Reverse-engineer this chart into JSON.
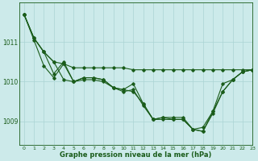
{
  "title": "Graphe pression niveau de la mer (hPa)",
  "bg_color": "#cceaea",
  "line_color": "#1a5c1a",
  "grid_color": "#aad4d4",
  "xlim": [
    -0.5,
    23
  ],
  "ylim": [
    1008.4,
    1012.0
  ],
  "yticks": [
    1009,
    1010,
    1011
  ],
  "xticks": [
    0,
    1,
    2,
    3,
    4,
    5,
    6,
    7,
    8,
    9,
    10,
    11,
    12,
    13,
    14,
    15,
    16,
    17,
    18,
    19,
    20,
    21,
    22,
    23
  ],
  "s1": [
    1011.7,
    1011.1,
    1010.75,
    1010.5,
    1010.45,
    1010.35,
    1010.35,
    1010.35,
    1010.35,
    1010.35,
    1010.35,
    1010.3,
    1010.3,
    1010.3,
    1010.3,
    1010.3,
    1010.3,
    1010.3,
    1010.3,
    1010.3,
    1010.3,
    1010.3,
    1010.3,
    1010.3
  ],
  "s2": [
    1011.7,
    1011.1,
    1010.75,
    1010.5,
    1010.05,
    1010.0,
    1010.1,
    1010.1,
    1010.05,
    1009.85,
    1009.8,
    1009.95,
    1009.45,
    1009.05,
    1009.1,
    1009.1,
    1009.1,
    1008.8,
    1008.75,
    1009.2,
    1009.75,
    1010.05,
    1010.25,
    1010.3
  ],
  "s3": [
    1011.7,
    1011.1,
    1010.75,
    1010.2,
    1010.5,
    1010.0,
    1010.1,
    1010.1,
    1010.05,
    1009.85,
    1009.8,
    1009.75,
    1009.45,
    1009.05,
    1009.1,
    1009.05,
    1009.05,
    1008.8,
    1008.75,
    1009.25,
    1009.75,
    1010.05,
    1010.25,
    1010.3
  ],
  "s4": [
    1011.7,
    1011.05,
    1010.4,
    1010.1,
    1010.45,
    1010.0,
    1010.05,
    1010.05,
    1010.0,
    1009.85,
    1009.75,
    1009.8,
    1009.4,
    1009.05,
    1009.05,
    1009.05,
    1009.05,
    1008.8,
    1008.85,
    1009.25,
    1009.95,
    1010.05,
    1010.25,
    1010.3
  ]
}
